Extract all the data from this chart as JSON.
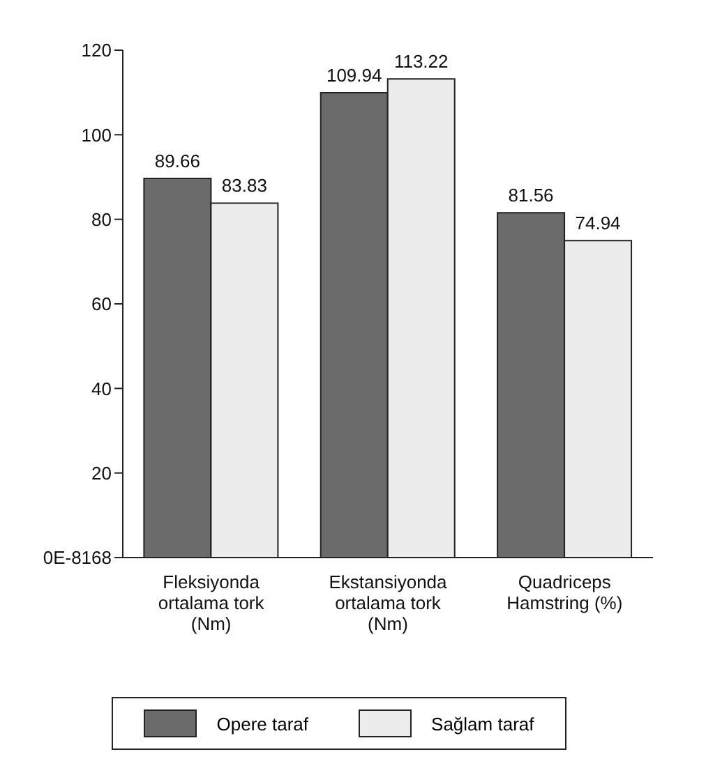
{
  "chart_data": {
    "type": "bar",
    "categories": [
      "Fleksiyonda ortalama tork (Nm)",
      "Ekstansiyonda ortalama tork (Nm)",
      "Quadriceps Hamstring (%)"
    ],
    "series": [
      {
        "name": "Opere taraf",
        "color": "#6b6b6b",
        "values": [
          89.66,
          109.94,
          81.56
        ]
      },
      {
        "name": "Sağlam taraf",
        "color": "#ececec",
        "values": [
          83.83,
          113.22,
          74.94
        ]
      }
    ],
    "ylim": [
      0,
      120
    ],
    "yticks": [
      {
        "value": 0,
        "label": "0E-8168"
      },
      20,
      40,
      60,
      80,
      {
        "value": 100,
        "label": "100"
      },
      120
    ],
    "data_labels": true,
    "grid": false,
    "legend": "bottom"
  }
}
